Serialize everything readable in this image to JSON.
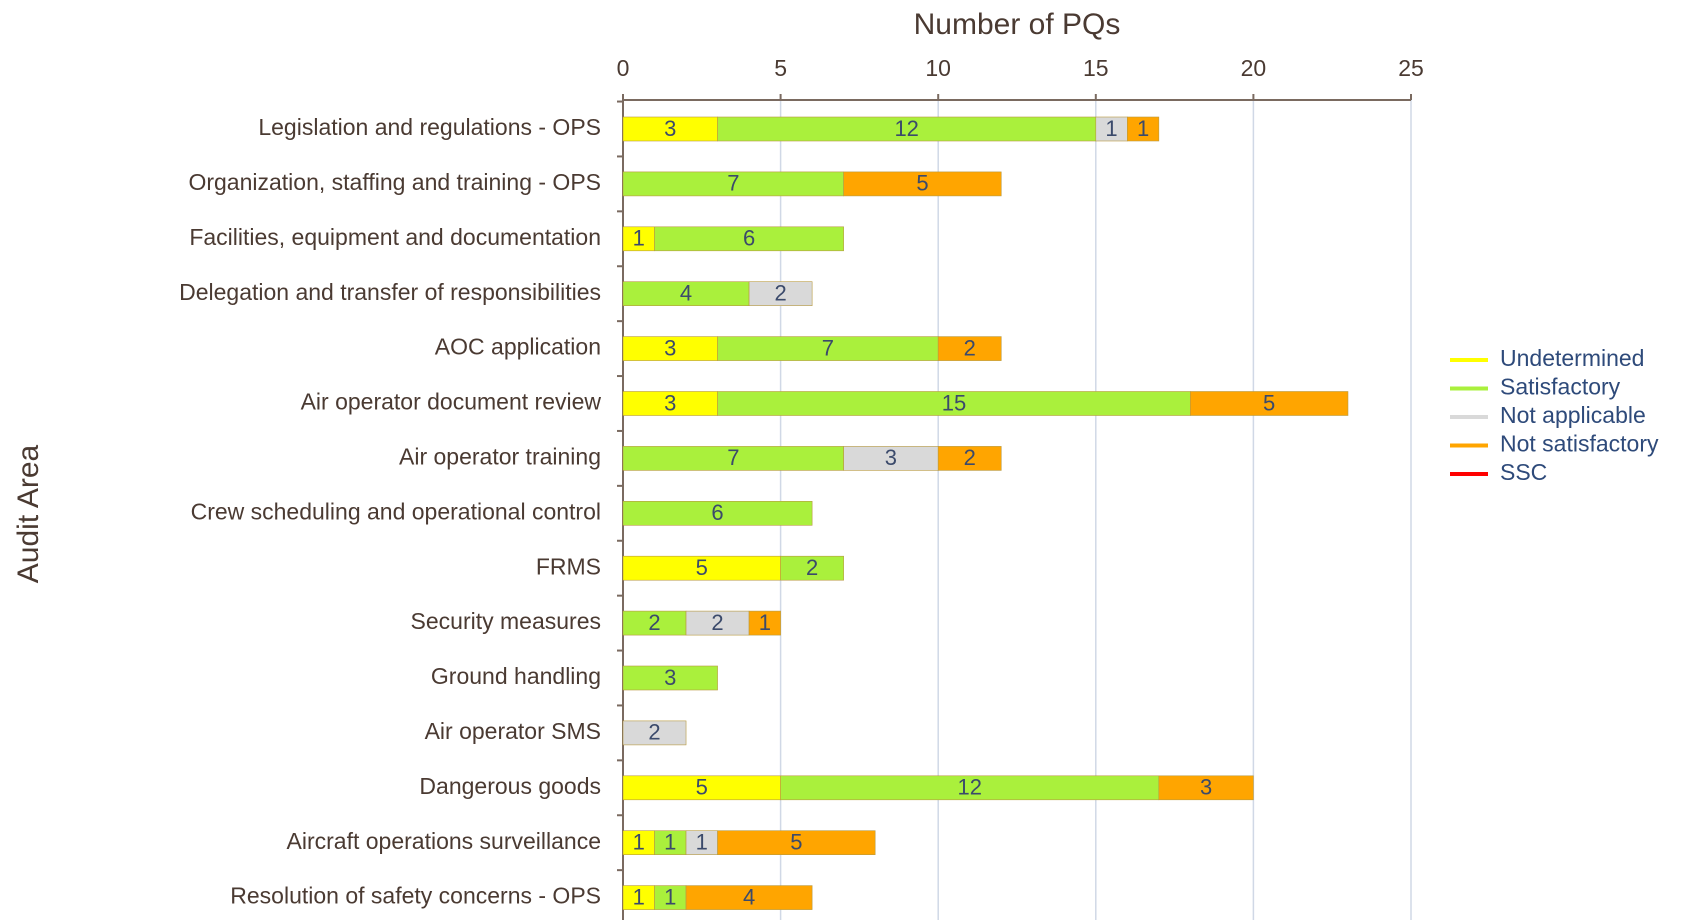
{
  "chart_data": {
    "type": "stacked_bar_horizontal",
    "title": "Number of PQs",
    "y_label": "Audit Area",
    "categories": [
      "Legislation and regulations - OPS",
      "Organization, staffing and training - OPS",
      "Facilities, equipment and documentation",
      "Delegation and transfer of responsibilities",
      "AOC application",
      "Air operator document review",
      "Air operator training",
      "Crew scheduling and operational control",
      "FRMS",
      "Security measures",
      "Ground handling",
      "Air operator SMS",
      "Dangerous goods",
      "Aircraft operations surveillance",
      "Resolution of safety concerns - OPS"
    ],
    "series": [
      {
        "name": "Undetermined",
        "color": "#ffff00",
        "values": [
          3,
          null,
          1,
          null,
          3,
          3,
          null,
          null,
          5,
          null,
          null,
          null,
          5,
          1,
          1
        ]
      },
      {
        "name": "Satisfactory",
        "color": "#aaf03c",
        "values": [
          12,
          7,
          6,
          4,
          7,
          15,
          7,
          6,
          2,
          2,
          3,
          null,
          12,
          1,
          1
        ]
      },
      {
        "name": "Not applicable",
        "color": "#d9d9d9",
        "values": [
          1,
          null,
          null,
          2,
          null,
          null,
          3,
          null,
          null,
          2,
          null,
          2,
          null,
          1,
          null
        ]
      },
      {
        "name": "Not satisfactory",
        "color": "#ffa500",
        "values": [
          1,
          5,
          null,
          null,
          2,
          5,
          2,
          null,
          null,
          1,
          null,
          null,
          3,
          5,
          4
        ]
      },
      {
        "name": "SSC",
        "color": "#ff0000",
        "values": [
          null,
          null,
          null,
          null,
          null,
          null,
          null,
          null,
          null,
          null,
          null,
          null,
          null,
          null,
          null
        ]
      }
    ],
    "xlim": [
      0,
      25
    ],
    "xticks": [
      0,
      5,
      10,
      15,
      20,
      25
    ],
    "grid": true,
    "legend": "right"
  }
}
